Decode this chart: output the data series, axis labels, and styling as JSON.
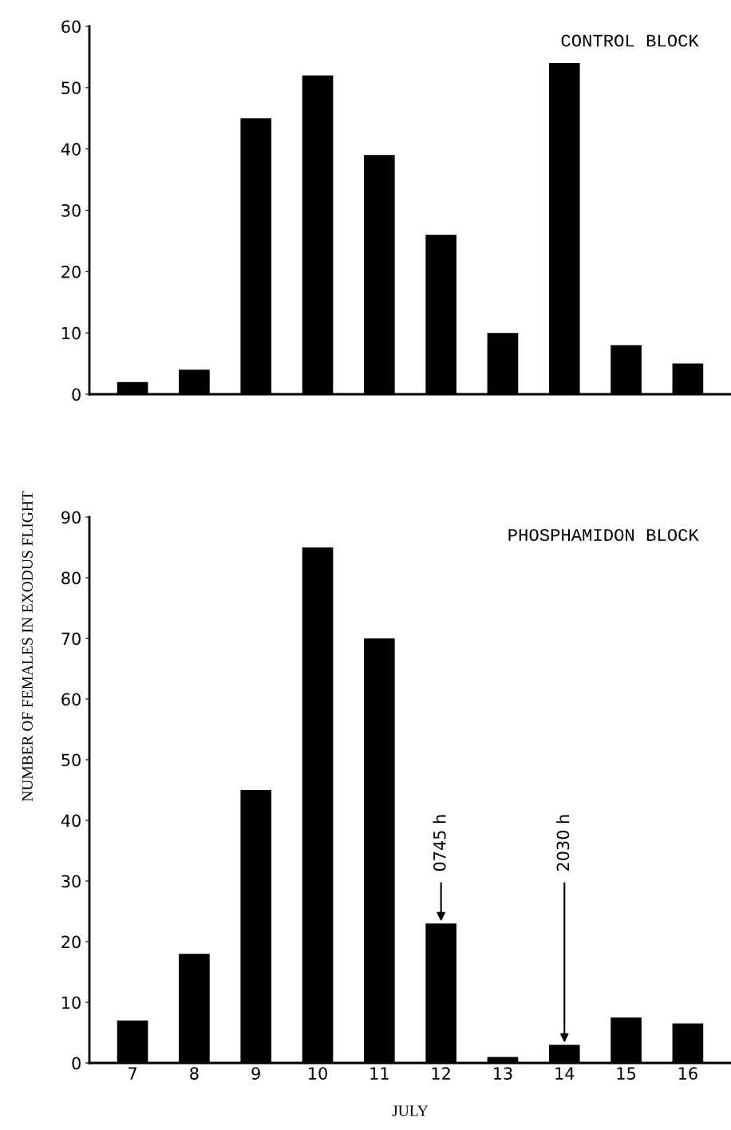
{
  "chart_data": [
    {
      "type": "bar",
      "title": "CONTROL BLOCK",
      "categories": [
        "7",
        "8",
        "9",
        "10",
        "11",
        "12",
        "13",
        "14",
        "15",
        "16"
      ],
      "series": [
        {
          "color": "#000000",
          "values": [
            2,
            4,
            45,
            52,
            39,
            26,
            10,
            54,
            8,
            5
          ]
        }
      ],
      "ylim": [
        0,
        60
      ],
      "yticks": [
        0,
        10,
        20,
        30,
        40,
        50,
        60
      ],
      "tick_labels": "y",
      "grid": false,
      "legend": false
    },
    {
      "type": "bar",
      "title": "PHOSPHAMIDON BLOCK",
      "xlabel": "JULY",
      "ylabel": "NUMBER OF FEMALES IN EXODUS FLIGHT",
      "categories": [
        "7",
        "8",
        "9",
        "10",
        "11",
        "12",
        "13",
        "14",
        "15",
        "16"
      ],
      "series": [
        {
          "color": "#000000",
          "values": [
            7,
            18,
            45,
            85,
            70,
            23,
            1,
            3,
            7.5,
            6.5
          ]
        }
      ],
      "ylim": [
        0,
        90
      ],
      "yticks": [
        0,
        10,
        20,
        30,
        40,
        50,
        60,
        70,
        80,
        90
      ],
      "grid": false,
      "legend": false,
      "annotations": [
        {
          "text": "0745 h",
          "x": "12",
          "y": 23
        },
        {
          "text": "2030 h",
          "x": "14",
          "y": 3
        }
      ]
    }
  ]
}
